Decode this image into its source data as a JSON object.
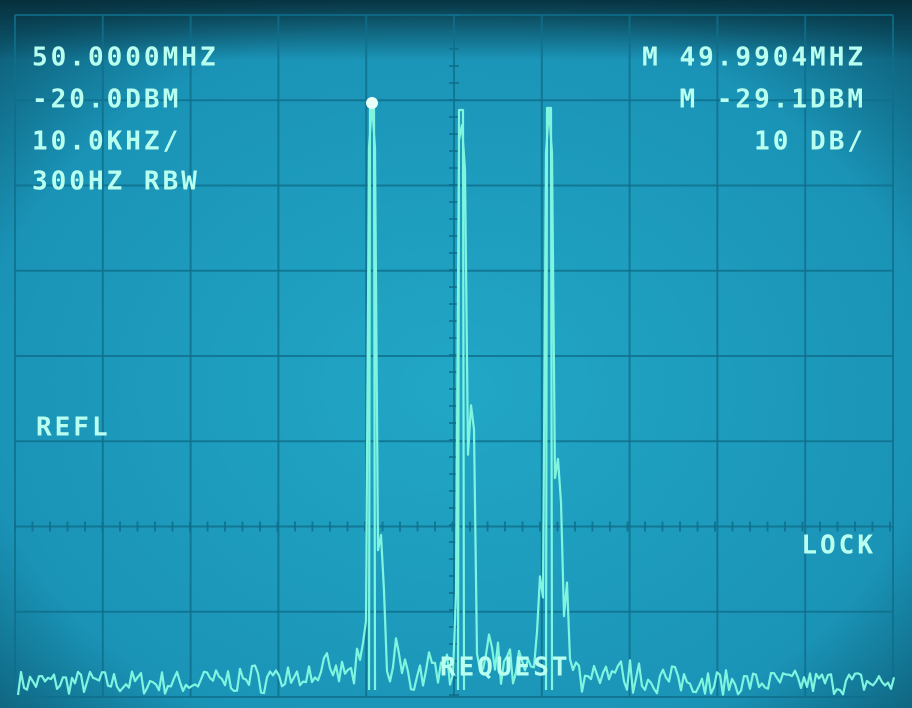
{
  "readout": {
    "center_freq": "50.0000MHZ",
    "ref_level": "-20.0DBM",
    "span": "10.0KHZ/",
    "rbw": "300HZ RBW",
    "marker_freq": "M 49.9904MHZ",
    "marker_level": "M -29.1DBM",
    "scale": "10 DB/",
    "refl": "REFL",
    "lock": "LOCK",
    "request": "REQUEST"
  }
}
